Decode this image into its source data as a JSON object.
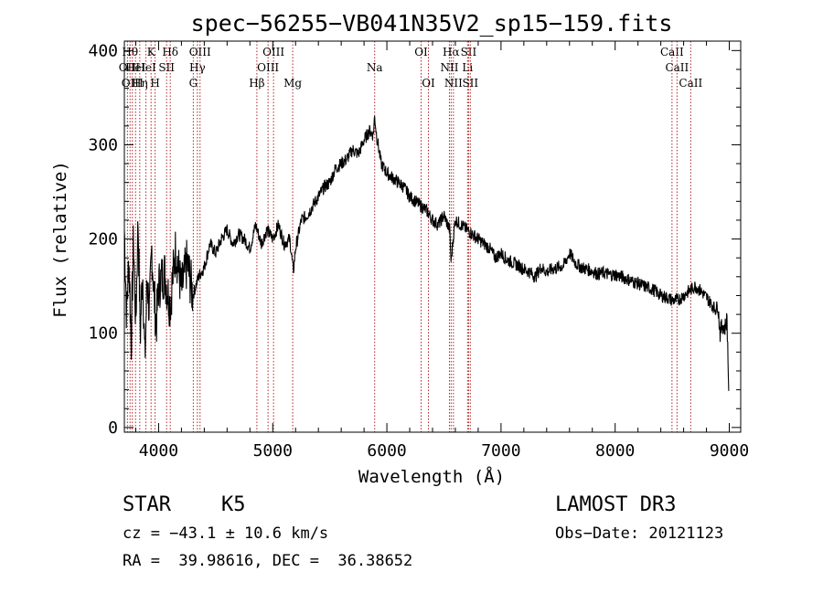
{
  "chart_data": {
    "type": "line",
    "title": "spec−56255−VB041N35V2_sp15−159.fits",
    "xlabel": "Wavelength (Å)",
    "ylabel": "Flux (relative)",
    "xlim": [
      3700,
      9100
    ],
    "ylim": [
      -5,
      410
    ],
    "xticks": [
      4000,
      5000,
      6000,
      7000,
      8000,
      9000
    ],
    "yticks": [
      0,
      100,
      200,
      300,
      400
    ],
    "series": [
      {
        "name": "flux",
        "x": [
          3700,
          3720,
          3740,
          3760,
          3780,
          3800,
          3820,
          3840,
          3860,
          3880,
          3900,
          3920,
          3940,
          3960,
          3980,
          4000,
          4050,
          4100,
          4150,
          4200,
          4250,
          4300,
          4350,
          4400,
          4450,
          4500,
          4550,
          4600,
          4650,
          4700,
          4750,
          4800,
          4850,
          4900,
          4950,
          5000,
          5050,
          5100,
          5150,
          5180,
          5200,
          5250,
          5300,
          5350,
          5400,
          5450,
          5500,
          5550,
          5600,
          5650,
          5700,
          5750,
          5800,
          5850,
          5880,
          5893,
          5910,
          5950,
          6000,
          6050,
          6100,
          6150,
          6200,
          6250,
          6300,
          6350,
          6400,
          6450,
          6500,
          6550,
          6563,
          6580,
          6600,
          6650,
          6700,
          6750,
          6800,
          6850,
          6900,
          6950,
          7000,
          7050,
          7100,
          7150,
          7200,
          7250,
          7300,
          7350,
          7400,
          7450,
          7500,
          7550,
          7600,
          7650,
          7700,
          7750,
          7800,
          7850,
          7900,
          7950,
          8000,
          8050,
          8100,
          8150,
          8200,
          8250,
          8300,
          8350,
          8400,
          8450,
          8500,
          8550,
          8600,
          8650,
          8700,
          8750,
          8800,
          8850,
          8880,
          8900,
          8920,
          8940,
          8960,
          8980,
          9000
        ],
        "y": [
          210,
          120,
          180,
          90,
          200,
          110,
          220,
          100,
          170,
          70,
          160,
          120,
          190,
          140,
          110,
          150,
          165,
          130,
          190,
          145,
          175,
          140,
          160,
          170,
          195,
          185,
          200,
          210,
          195,
          205,
          200,
          190,
          215,
          195,
          210,
          200,
          215,
          195,
          200,
          165,
          190,
          220,
          225,
          235,
          245,
          255,
          260,
          275,
          280,
          285,
          295,
          290,
          305,
          315,
          310,
          330,
          310,
          280,
          270,
          265,
          260,
          255,
          245,
          240,
          235,
          230,
          220,
          215,
          225,
          210,
          175,
          200,
          220,
          215,
          210,
          205,
          200,
          195,
          190,
          180,
          185,
          178,
          175,
          172,
          168,
          165,
          160,
          170,
          165,
          168,
          170,
          172,
          185,
          175,
          170,
          168,
          166,
          163,
          164,
          162,
          162,
          160,
          158,
          155,
          153,
          150,
          148,
          145,
          140,
          138,
          135,
          135,
          140,
          145,
          150,
          145,
          138,
          130,
          125,
          130,
          100,
          110,
          105,
          115,
          20
        ]
      }
    ],
    "spectral_lines": [
      {
        "wl": 3727,
        "label": "OII",
        "row": 2
      },
      {
        "wl": 3750,
        "label": "Hθ",
        "row": 1
      },
      {
        "wl": 3770,
        "label": "OIII",
        "row": 3
      },
      {
        "wl": 3798,
        "label": "HeI",
        "row": 2
      },
      {
        "wl": 3835,
        "label": "Hη",
        "row": 3
      },
      {
        "wl": 3889,
        "label": "HeI",
        "row": 2
      },
      {
        "wl": 3934,
        "label": "K",
        "row": 1
      },
      {
        "wl": 3969,
        "label": "H",
        "row": 3
      },
      {
        "wl": 4070,
        "label": "SII",
        "row": 2
      },
      {
        "wl": 4102,
        "label": "Hδ",
        "row": 1
      },
      {
        "wl": 4304,
        "label": "G",
        "row": 3
      },
      {
        "wl": 4340,
        "label": "Hγ",
        "row": 2
      },
      {
        "wl": 4363,
        "label": "OIII",
        "row": 1
      },
      {
        "wl": 4861,
        "label": "Hβ",
        "row": 3
      },
      {
        "wl": 4959,
        "label": "OIII",
        "row": 2
      },
      {
        "wl": 5007,
        "label": "OIII",
        "row": 1
      },
      {
        "wl": 5175,
        "label": "Mg",
        "row": 3
      },
      {
        "wl": 5893,
        "label": "Na",
        "row": 2
      },
      {
        "wl": 6300,
        "label": "OI",
        "row": 1
      },
      {
        "wl": 6364,
        "label": "OI",
        "row": 3
      },
      {
        "wl": 6548,
        "label": "NII",
        "row": 2
      },
      {
        "wl": 6563,
        "label": "Hα",
        "row": 1
      },
      {
        "wl": 6583,
        "label": "NII",
        "row": 3
      },
      {
        "wl": 6707,
        "label": "Li",
        "row": 2
      },
      {
        "wl": 6716,
        "label": "SII",
        "row": 1
      },
      {
        "wl": 6731,
        "label": "SII",
        "row": 3
      },
      {
        "wl": 8498,
        "label": "CaII",
        "row": 1
      },
      {
        "wl": 8542,
        "label": "CaII",
        "row": 2
      },
      {
        "wl": 8662,
        "label": "CaII",
        "row": 3
      }
    ]
  },
  "footer": {
    "object_class": "STAR",
    "subclass": "K5",
    "redshift": "cz = −43.1 ± 10.6 km/s",
    "coords": "RA =  39.98616, DEC =  36.38652",
    "survey": "LAMOST DR3",
    "obs_date": "Obs−Date: 20121123"
  }
}
